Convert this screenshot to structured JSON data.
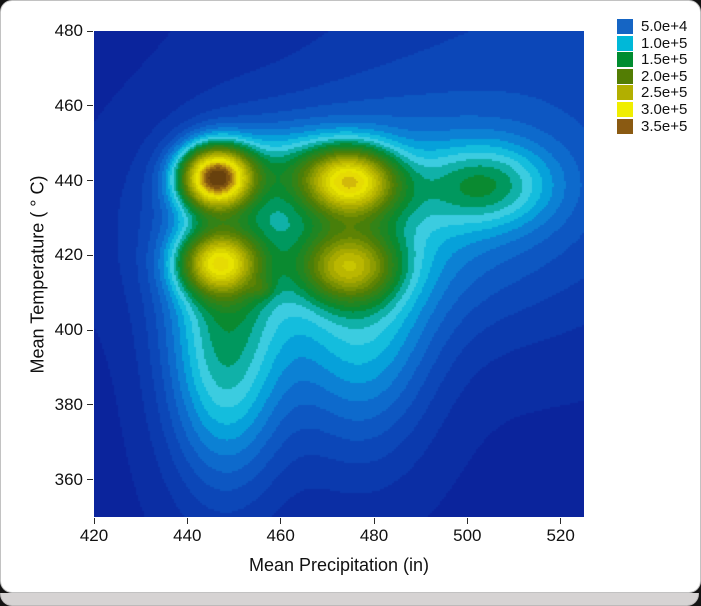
{
  "chart_data": {
    "type": "heatmap",
    "subtype": "filled-contour-plot",
    "title": "",
    "xlabel": "Mean Precipitation (in)",
    "ylabel": "Mean Temperature ( ° C)",
    "xlim": [
      420,
      525
    ],
    "ylim": [
      350,
      480
    ],
    "x_ticks": [
      420,
      440,
      460,
      480,
      500,
      520
    ],
    "y_ticks": [
      360,
      380,
      400,
      420,
      440,
      460,
      480
    ],
    "grid": false,
    "legend_position": "top-right-outside",
    "legend": [
      {
        "label": "5.0e+4",
        "value": 50000,
        "color": "#1565c4"
      },
      {
        "label": "1.0e+5",
        "value": 100000,
        "color": "#00b8d8"
      },
      {
        "label": "1.5e+5",
        "value": 150000,
        "color": "#008c30"
      },
      {
        "label": "2.0e+5",
        "value": 200000,
        "color": "#537d04"
      },
      {
        "label": "2.5e+5",
        "value": 250000,
        "color": "#b2af00"
      },
      {
        "label": "3.0e+5",
        "value": 300000,
        "color": "#f0ee00"
      },
      {
        "label": "3.5e+5",
        "value": 350000,
        "color": "#8a5a12"
      }
    ],
    "levels": {
      "min": 0,
      "max": 375000,
      "step": 12500
    },
    "colormap": [
      [
        0,
        "#0b1e97"
      ],
      [
        37500,
        "#0b3fb2"
      ],
      [
        62500,
        "#0e5fc8"
      ],
      [
        87500,
        "#0b8cd8"
      ],
      [
        100000,
        "#00b6dc"
      ],
      [
        120000,
        "#3fcde0"
      ],
      [
        135000,
        "#00a896"
      ],
      [
        150000,
        "#008c36"
      ],
      [
        200000,
        "#527d04"
      ],
      [
        250000,
        "#b2af00"
      ],
      [
        300000,
        "#f0ec00"
      ],
      [
        330000,
        "#c09a10"
      ],
      [
        350000,
        "#8a5a12"
      ],
      [
        375000,
        "#5c390b"
      ]
    ],
    "base_value": 8000,
    "peaks": [
      {
        "x": 446,
        "y": 441,
        "amp": 290000,
        "sx": 5.5,
        "sy": 6,
        "note": "main maximum, dark-brown core ~3.8e5"
      },
      {
        "x": 475,
        "y": 440,
        "amp": 200000,
        "sx": 7,
        "sy": 6.5,
        "note": "upper-right yellow peak ~3.2e5"
      },
      {
        "x": 446.5,
        "y": 418,
        "amp": 170000,
        "sx": 6,
        "sy": 6,
        "note": "lower-left yellow peak ~3.1e5"
      },
      {
        "x": 474.5,
        "y": 417,
        "amp": 125000,
        "sx": 7,
        "sy": 6.5,
        "note": "lower-right olive peak ~2.7e5"
      },
      {
        "x": 461,
        "y": 428,
        "amp": 55000,
        "sx": 21,
        "sy": 19,
        "note": "broad central mound"
      },
      {
        "x": 504,
        "y": 439,
        "amp": 80000,
        "sx": 10,
        "sy": 8,
        "note": "small teal bump right side ~1.5e5"
      },
      {
        "x": 495,
        "y": 430,
        "amp": 45000,
        "sx": 26,
        "sy": 22,
        "note": "broad cyan lobe to the right"
      },
      {
        "x": 448,
        "y": 395,
        "amp": 120000,
        "sx": 9,
        "sy": 26,
        "note": "downward tongue below left peaks"
      },
      {
        "x": 477,
        "y": 399,
        "amp": 80000,
        "sx": 11,
        "sy": 24,
        "note": "downward tongue below right peaks"
      },
      {
        "x": 520,
        "y": 470,
        "amp": 30000,
        "sx": 40,
        "sy": 40,
        "note": "mild lift top-right corner"
      },
      {
        "x": 456,
        "y": 411,
        "amp": 25000,
        "sx": 1.8,
        "sy": 1.8,
        "note": "tiny olive dot"
      },
      {
        "x": 461,
        "y": 444,
        "amp": 45000,
        "sx": 9,
        "sy": 7,
        "note": "green col between top peaks"
      }
    ]
  }
}
